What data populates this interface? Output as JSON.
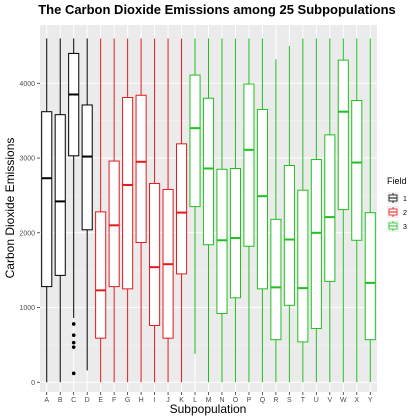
{
  "chart_data": {
    "type": "boxplot",
    "title": "The Carbon Dioxide Emissions among 25 Subpopulations",
    "xlabel": "Subpopulation",
    "ylabel": "Carbon Dioxide Emissions",
    "yticks": [
      0,
      1000,
      2000,
      3000,
      4000
    ],
    "ylim": [
      -130,
      4780
    ],
    "grid": true,
    "legend": {
      "title": "Field",
      "position": "right",
      "entries": [
        "1",
        "2",
        "3"
      ],
      "colors": [
        "#000000",
        "#e41a1c",
        "#21c021"
      ]
    },
    "categories": [
      "A",
      "B",
      "C",
      "D",
      "E",
      "F",
      "G",
      "H",
      "I",
      "J",
      "K",
      "L",
      "M",
      "N",
      "O",
      "P",
      "Q",
      "R",
      "S",
      "T",
      "U",
      "V",
      "W",
      "X",
      "Y"
    ],
    "boxes": [
      {
        "label": "A",
        "field": "1",
        "min": 0,
        "q1": 1280,
        "median": 2730,
        "q3": 3620,
        "max": 4600,
        "outliers": []
      },
      {
        "label": "B",
        "field": "1",
        "min": 0,
        "q1": 1430,
        "median": 2420,
        "q3": 3580,
        "max": 4600,
        "outliers": []
      },
      {
        "label": "C",
        "field": "1",
        "min": 860,
        "q1": 3030,
        "median": 3850,
        "q3": 4400,
        "max": 4600,
        "outliers": [
          780,
          630,
          530,
          470,
          120
        ]
      },
      {
        "label": "D",
        "field": "1",
        "min": 160,
        "q1": 2040,
        "median": 3020,
        "q3": 3710,
        "max": 4600,
        "outliers": []
      },
      {
        "label": "E",
        "field": "2",
        "min": 0,
        "q1": 590,
        "median": 1230,
        "q3": 2280,
        "max": 4600,
        "outliers": []
      },
      {
        "label": "F",
        "field": "2",
        "min": 0,
        "q1": 1280,
        "median": 2100,
        "q3": 2960,
        "max": 4600,
        "outliers": []
      },
      {
        "label": "G",
        "field": "2",
        "min": 0,
        "q1": 1250,
        "median": 2640,
        "q3": 3810,
        "max": 4600,
        "outliers": []
      },
      {
        "label": "H",
        "field": "2",
        "min": 0,
        "q1": 1870,
        "median": 2950,
        "q3": 3840,
        "max": 4600,
        "outliers": []
      },
      {
        "label": "I",
        "field": "2",
        "min": 0,
        "q1": 760,
        "median": 1540,
        "q3": 2660,
        "max": 4600,
        "outliers": []
      },
      {
        "label": "J",
        "field": "2",
        "min": 0,
        "q1": 590,
        "median": 1580,
        "q3": 2580,
        "max": 4600,
        "outliers": []
      },
      {
        "label": "K",
        "field": "2",
        "min": 0,
        "q1": 1450,
        "median": 2270,
        "q3": 3190,
        "max": 4600,
        "outliers": []
      },
      {
        "label": "L",
        "field": "3",
        "min": 380,
        "q1": 2350,
        "median": 3400,
        "q3": 4110,
        "max": 4600,
        "outliers": []
      },
      {
        "label": "M",
        "field": "3",
        "min": 0,
        "q1": 1840,
        "median": 2860,
        "q3": 3800,
        "max": 4600,
        "outliers": []
      },
      {
        "label": "N",
        "field": "3",
        "min": 0,
        "q1": 920,
        "median": 1900,
        "q3": 2850,
        "max": 4600,
        "outliers": []
      },
      {
        "label": "O",
        "field": "3",
        "min": 0,
        "q1": 1130,
        "median": 1930,
        "q3": 2860,
        "max": 4600,
        "outliers": []
      },
      {
        "label": "P",
        "field": "3",
        "min": 0,
        "q1": 1820,
        "median": 3110,
        "q3": 3990,
        "max": 4600,
        "outliers": []
      },
      {
        "label": "Q",
        "field": "3",
        "min": 0,
        "q1": 1250,
        "median": 2490,
        "q3": 3650,
        "max": 4600,
        "outliers": []
      },
      {
        "label": "R",
        "field": "3",
        "min": 0,
        "q1": 570,
        "median": 1270,
        "q3": 2180,
        "max": 4320,
        "outliers": []
      },
      {
        "label": "S",
        "field": "3",
        "min": 0,
        "q1": 1030,
        "median": 1910,
        "q3": 2900,
        "max": 4500,
        "outliers": []
      },
      {
        "label": "T",
        "field": "3",
        "min": 0,
        "q1": 540,
        "median": 1260,
        "q3": 2570,
        "max": 4600,
        "outliers": []
      },
      {
        "label": "U",
        "field": "3",
        "min": 0,
        "q1": 720,
        "median": 2000,
        "q3": 2980,
        "max": 4600,
        "outliers": []
      },
      {
        "label": "V",
        "field": "3",
        "min": 0,
        "q1": 1350,
        "median": 2210,
        "q3": 3310,
        "max": 4600,
        "outliers": []
      },
      {
        "label": "W",
        "field": "3",
        "min": 0,
        "q1": 2310,
        "median": 3620,
        "q3": 4310,
        "max": 4600,
        "outliers": []
      },
      {
        "label": "X",
        "field": "3",
        "min": 0,
        "q1": 1900,
        "median": 2940,
        "q3": 3770,
        "max": 4600,
        "outliers": []
      },
      {
        "label": "Y",
        "field": "3",
        "min": 0,
        "q1": 570,
        "median": 1330,
        "q3": 2270,
        "max": 4600,
        "outliers": []
      }
    ]
  }
}
